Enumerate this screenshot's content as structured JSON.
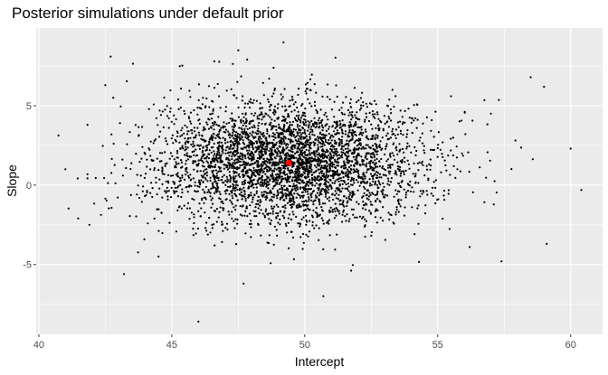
{
  "chart_data": {
    "type": "scatter",
    "title": "Posterior simulations under default prior",
    "xlabel": "Intercept",
    "ylabel": "Slope",
    "xlim": [
      39.9,
      61.2
    ],
    "ylim": [
      -9.4,
      9.9
    ],
    "x_ticks": [
      40,
      45,
      50,
      55,
      60
    ],
    "y_ticks": [
      -5,
      0,
      5
    ],
    "x_tick_labels": [
      "40",
      "45",
      "50",
      "55",
      "60"
    ],
    "y_tick_labels": [
      "-5",
      "0",
      "5"
    ],
    "grid": true,
    "legend": "none",
    "colors": {
      "panel": "#ebebeb",
      "grid": "#ffffff",
      "points": "#000000",
      "highlight": "#ff0000"
    },
    "n_points": 4000,
    "center": {
      "x": 49.4,
      "y": 1.5
    },
    "spread": {
      "x": 2.5,
      "y": 1.9
    },
    "outliers": [
      {
        "x": 42.7,
        "y": 8.1
      },
      {
        "x": 49.2,
        "y": 9.0
      },
      {
        "x": 47.5,
        "y": 8.5
      },
      {
        "x": 45.3,
        "y": 7.5
      },
      {
        "x": 46.6,
        "y": 7.8
      },
      {
        "x": 58.5,
        "y": 6.8
      },
      {
        "x": 59.0,
        "y": 6.2
      },
      {
        "x": 42.5,
        "y": 6.3
      },
      {
        "x": 41.0,
        "y": 1.0
      },
      {
        "x": 60.4,
        "y": -0.3
      },
      {
        "x": 46.0,
        "y": -8.6
      },
      {
        "x": 50.7,
        "y": -7.0
      },
      {
        "x": 57.4,
        "y": -4.8
      },
      {
        "x": 43.2,
        "y": -5.6
      },
      {
        "x": 47.7,
        "y": -6.2
      },
      {
        "x": 41.9,
        "y": -2.5
      },
      {
        "x": 59.1,
        "y": -3.7
      },
      {
        "x": 56.2,
        "y": -3.9
      },
      {
        "x": 44.5,
        "y": -4.5
      },
      {
        "x": 55.5,
        "y": 5.6
      },
      {
        "x": 57.0,
        "y": 4.5
      },
      {
        "x": 60.0,
        "y": 2.3
      }
    ],
    "highlight_point": {
      "x": 49.4,
      "y": 1.4
    }
  }
}
